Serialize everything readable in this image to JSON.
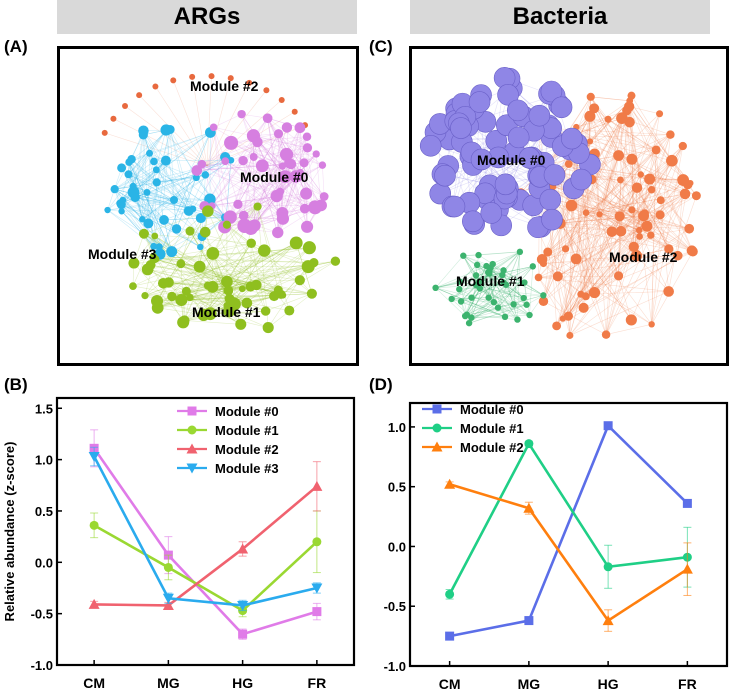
{
  "headers": {
    "args": "ARGs",
    "bacteria": "Bacteria"
  },
  "panel_labels": {
    "a": "(A)",
    "b": "(B)",
    "c": "(C)",
    "d": "(D)"
  },
  "networks": {
    "args": {
      "modules": [
        {
          "name": "Module #0",
          "color": "#d67fe0"
        },
        {
          "name": "Module #1",
          "color": "#8fbf1f"
        },
        {
          "name": "Module #2",
          "color": "#e8693e"
        },
        {
          "name": "Module #3",
          "color": "#2ab4e6"
        }
      ]
    },
    "bacteria": {
      "modules": [
        {
          "name": "Module #0",
          "color": "#8f86e6"
        },
        {
          "name": "Module #1",
          "color": "#3cb36e"
        },
        {
          "name": "Module #2",
          "color": "#f07b48"
        }
      ]
    }
  },
  "chart_data": [
    {
      "type": "line",
      "panel": "B",
      "title": "",
      "xlabel": "",
      "ylabel": "Relative abundance (z-score)",
      "categories": [
        "CM",
        "MG",
        "HG",
        "FR"
      ],
      "ylim": [
        -1.0,
        1.6
      ],
      "yticks": [
        -1.0,
        -0.5,
        0.0,
        0.5,
        1.0,
        1.5
      ],
      "ytick_labels": [
        "-1.0",
        "-0.5",
        "0.0",
        "0.5",
        "1.0",
        "1.5"
      ],
      "legend_position": "top-right",
      "series": [
        {
          "name": "Module #0",
          "color": "#e07be8",
          "marker": "square",
          "values": [
            1.11,
            0.07,
            -0.7,
            -0.48
          ],
          "errors": [
            0.18,
            0.18,
            0.05,
            0.08
          ]
        },
        {
          "name": "Module #1",
          "color": "#9ad832",
          "marker": "circle",
          "values": [
            0.36,
            -0.05,
            -0.47,
            0.2
          ],
          "errors": [
            0.12,
            0.12,
            0.06,
            0.3
          ]
        },
        {
          "name": "Module #2",
          "color": "#f0626f",
          "marker": "triangle-up",
          "values": [
            -0.41,
            -0.42,
            0.13,
            0.74
          ],
          "errors": [
            0.03,
            0.03,
            0.07,
            0.24
          ]
        },
        {
          "name": "Module #3",
          "color": "#2aabee",
          "marker": "triangle-down",
          "values": [
            1.03,
            -0.35,
            -0.42,
            -0.25
          ],
          "errors": [
            0.09,
            0.05,
            0.05,
            0.05
          ]
        }
      ]
    },
    {
      "type": "line",
      "panel": "D",
      "title": "",
      "xlabel": "",
      "ylabel": "",
      "categories": [
        "CM",
        "MG",
        "HG",
        "FR"
      ],
      "ylim": [
        -1.0,
        1.2
      ],
      "yticks": [
        -1.0,
        -0.5,
        0.0,
        0.5,
        1.0
      ],
      "ytick_labels": [
        "-1.0",
        "-0.5",
        "0.0",
        "0.5",
        "1.0"
      ],
      "legend_position": "top-left",
      "series": [
        {
          "name": "Module #0",
          "color": "#5b6ee8",
          "marker": "square",
          "values": [
            -0.75,
            -0.62,
            1.01,
            0.36
          ],
          "errors": [
            0.02,
            0.02,
            0.02,
            0.02
          ]
        },
        {
          "name": "Module #1",
          "color": "#1fcf86",
          "marker": "circle",
          "values": [
            -0.4,
            0.86,
            -0.17,
            -0.09
          ],
          "errors": [
            0.04,
            0.02,
            0.18,
            0.25
          ]
        },
        {
          "name": "Module #2",
          "color": "#ff7f0e",
          "marker": "triangle-up",
          "values": [
            0.52,
            0.32,
            -0.62,
            -0.19
          ],
          "errors": [
            0.02,
            0.05,
            0.09,
            0.22
          ]
        }
      ]
    }
  ]
}
